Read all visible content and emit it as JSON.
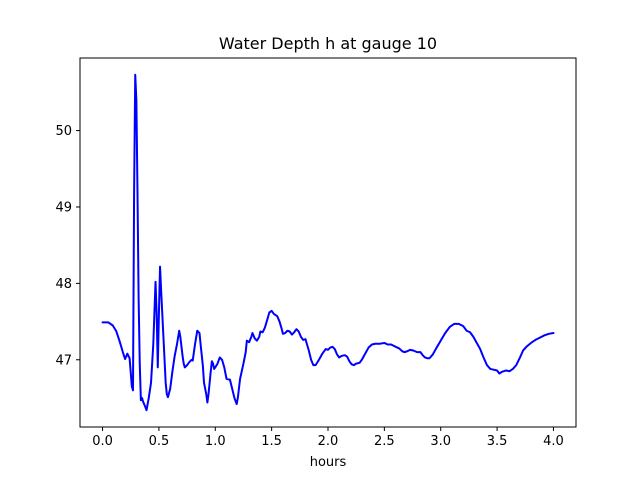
{
  "chart_data": {
    "type": "line",
    "title": "Water Depth h at gauge 10",
    "xlabel": "hours",
    "ylabel": "",
    "xlim": [
      -0.2,
      4.2
    ],
    "ylim": [
      46.12,
      50.95
    ],
    "grid": false,
    "legend": "none",
    "x_ticks": [
      {
        "value": 0.0,
        "label": "0.0"
      },
      {
        "value": 0.5,
        "label": "0.5"
      },
      {
        "value": 1.0,
        "label": "1.0"
      },
      {
        "value": 1.5,
        "label": "1.5"
      },
      {
        "value": 2.0,
        "label": "2.0"
      },
      {
        "value": 2.5,
        "label": "2.5"
      },
      {
        "value": 3.0,
        "label": "3.0"
      },
      {
        "value": 3.5,
        "label": "3.5"
      },
      {
        "value": 4.0,
        "label": "4.0"
      }
    ],
    "y_ticks": [
      {
        "value": 47,
        "label": "47"
      },
      {
        "value": 48,
        "label": "48"
      },
      {
        "value": 49,
        "label": "49"
      },
      {
        "value": 50,
        "label": "50"
      }
    ],
    "series": [
      {
        "color": "#0000ff",
        "points": [
          [
            0.0,
            47.49
          ],
          [
            0.05,
            47.49
          ],
          [
            0.09,
            47.45
          ],
          [
            0.12,
            47.38
          ],
          [
            0.15,
            47.25
          ],
          [
            0.18,
            47.1
          ],
          [
            0.2,
            47.01
          ],
          [
            0.22,
            47.08
          ],
          [
            0.24,
            47.02
          ],
          [
            0.26,
            46.65
          ],
          [
            0.27,
            46.6
          ],
          [
            0.28,
            49.2
          ],
          [
            0.29,
            50.73
          ],
          [
            0.3,
            50.4
          ],
          [
            0.31,
            49.2
          ],
          [
            0.32,
            47.8
          ],
          [
            0.33,
            46.95
          ],
          [
            0.34,
            46.47
          ],
          [
            0.35,
            46.5
          ],
          [
            0.36,
            46.45
          ],
          [
            0.38,
            46.38
          ],
          [
            0.39,
            46.34
          ],
          [
            0.41,
            46.5
          ],
          [
            0.43,
            46.7
          ],
          [
            0.45,
            47.2
          ],
          [
            0.47,
            48.02
          ],
          [
            0.48,
            47.6
          ],
          [
            0.49,
            46.9
          ],
          [
            0.5,
            47.6
          ],
          [
            0.51,
            48.22
          ],
          [
            0.52,
            47.9
          ],
          [
            0.54,
            47.3
          ],
          [
            0.56,
            46.7
          ],
          [
            0.57,
            46.55
          ],
          [
            0.58,
            46.51
          ],
          [
            0.6,
            46.62
          ],
          [
            0.62,
            46.85
          ],
          [
            0.64,
            47.05
          ],
          [
            0.66,
            47.2
          ],
          [
            0.68,
            47.38
          ],
          [
            0.69,
            47.3
          ],
          [
            0.71,
            47.05
          ],
          [
            0.72,
            46.95
          ],
          [
            0.73,
            46.9
          ],
          [
            0.75,
            46.93
          ],
          [
            0.77,
            46.97
          ],
          [
            0.79,
            47.0
          ],
          [
            0.8,
            46.99
          ],
          [
            0.82,
            47.2
          ],
          [
            0.84,
            47.38
          ],
          [
            0.86,
            47.35
          ],
          [
            0.87,
            47.2
          ],
          [
            0.89,
            46.92
          ],
          [
            0.9,
            46.7
          ],
          [
            0.92,
            46.55
          ],
          [
            0.93,
            46.44
          ],
          [
            0.94,
            46.55
          ],
          [
            0.96,
            46.85
          ],
          [
            0.97,
            46.98
          ],
          [
            0.98,
            46.95
          ],
          [
            0.99,
            46.88
          ],
          [
            1.0,
            46.9
          ],
          [
            1.02,
            46.95
          ],
          [
            1.04,
            47.03
          ],
          [
            1.06,
            47.0
          ],
          [
            1.08,
            46.9
          ],
          [
            1.1,
            46.75
          ],
          [
            1.13,
            46.74
          ],
          [
            1.15,
            46.62
          ],
          [
            1.17,
            46.5
          ],
          [
            1.19,
            46.42
          ],
          [
            1.2,
            46.5
          ],
          [
            1.22,
            46.75
          ],
          [
            1.25,
            46.95
          ],
          [
            1.27,
            47.1
          ],
          [
            1.28,
            47.25
          ],
          [
            1.3,
            47.23
          ],
          [
            1.32,
            47.3
          ],
          [
            1.33,
            47.35
          ],
          [
            1.35,
            47.28
          ],
          [
            1.37,
            47.25
          ],
          [
            1.39,
            47.3
          ],
          [
            1.4,
            47.37
          ],
          [
            1.42,
            47.36
          ],
          [
            1.44,
            47.42
          ],
          [
            1.46,
            47.52
          ],
          [
            1.48,
            47.62
          ],
          [
            1.5,
            47.64
          ],
          [
            1.52,
            47.6
          ],
          [
            1.55,
            47.57
          ],
          [
            1.57,
            47.5
          ],
          [
            1.59,
            47.4
          ],
          [
            1.6,
            47.34
          ],
          [
            1.62,
            47.35
          ],
          [
            1.64,
            47.38
          ],
          [
            1.66,
            47.37
          ],
          [
            1.68,
            47.33
          ],
          [
            1.7,
            47.36
          ],
          [
            1.72,
            47.4
          ],
          [
            1.74,
            47.37
          ],
          [
            1.76,
            47.3
          ],
          [
            1.78,
            47.26
          ],
          [
            1.8,
            47.27
          ],
          [
            1.83,
            47.12
          ],
          [
            1.85,
            47.0
          ],
          [
            1.87,
            46.93
          ],
          [
            1.89,
            46.93
          ],
          [
            1.92,
            47.0
          ],
          [
            1.95,
            47.08
          ],
          [
            1.98,
            47.14
          ],
          [
            2.0,
            47.13
          ],
          [
            2.02,
            47.16
          ],
          [
            2.04,
            47.17
          ],
          [
            2.06,
            47.14
          ],
          [
            2.08,
            47.07
          ],
          [
            2.1,
            47.03
          ],
          [
            2.12,
            47.05
          ],
          [
            2.15,
            47.06
          ],
          [
            2.17,
            47.04
          ],
          [
            2.19,
            46.98
          ],
          [
            2.21,
            46.94
          ],
          [
            2.23,
            46.93
          ],
          [
            2.25,
            46.95
          ],
          [
            2.28,
            46.96
          ],
          [
            2.3,
            47.0
          ],
          [
            2.33,
            47.08
          ],
          [
            2.36,
            47.16
          ],
          [
            2.39,
            47.2
          ],
          [
            2.42,
            47.21
          ],
          [
            2.46,
            47.21
          ],
          [
            2.5,
            47.22
          ],
          [
            2.53,
            47.2
          ],
          [
            2.56,
            47.2
          ],
          [
            2.6,
            47.17
          ],
          [
            2.63,
            47.15
          ],
          [
            2.66,
            47.11
          ],
          [
            2.68,
            47.1
          ],
          [
            2.7,
            47.11
          ],
          [
            2.73,
            47.13
          ],
          [
            2.76,
            47.12
          ],
          [
            2.79,
            47.1
          ],
          [
            2.82,
            47.1
          ],
          [
            2.84,
            47.06
          ],
          [
            2.86,
            47.03
          ],
          [
            2.88,
            47.02
          ],
          [
            2.9,
            47.02
          ],
          [
            2.93,
            47.07
          ],
          [
            2.96,
            47.15
          ],
          [
            3.0,
            47.25
          ],
          [
            3.04,
            47.35
          ],
          [
            3.08,
            47.43
          ],
          [
            3.12,
            47.47
          ],
          [
            3.16,
            47.47
          ],
          [
            3.2,
            47.44
          ],
          [
            3.23,
            47.38
          ],
          [
            3.26,
            47.36
          ],
          [
            3.29,
            47.3
          ],
          [
            3.32,
            47.22
          ],
          [
            3.35,
            47.14
          ],
          [
            3.38,
            47.03
          ],
          [
            3.41,
            46.93
          ],
          [
            3.44,
            46.88
          ],
          [
            3.47,
            46.87
          ],
          [
            3.5,
            46.86
          ],
          [
            3.52,
            46.82
          ],
          [
            3.54,
            46.84
          ],
          [
            3.56,
            46.85
          ],
          [
            3.58,
            46.86
          ],
          [
            3.61,
            46.85
          ],
          [
            3.64,
            46.88
          ],
          [
            3.67,
            46.93
          ],
          [
            3.7,
            47.02
          ],
          [
            3.73,
            47.12
          ],
          [
            3.76,
            47.17
          ],
          [
            3.8,
            47.22
          ],
          [
            3.84,
            47.26
          ],
          [
            3.88,
            47.29
          ],
          [
            3.92,
            47.32
          ],
          [
            3.96,
            47.34
          ],
          [
            4.0,
            47.35
          ]
        ]
      }
    ]
  }
}
